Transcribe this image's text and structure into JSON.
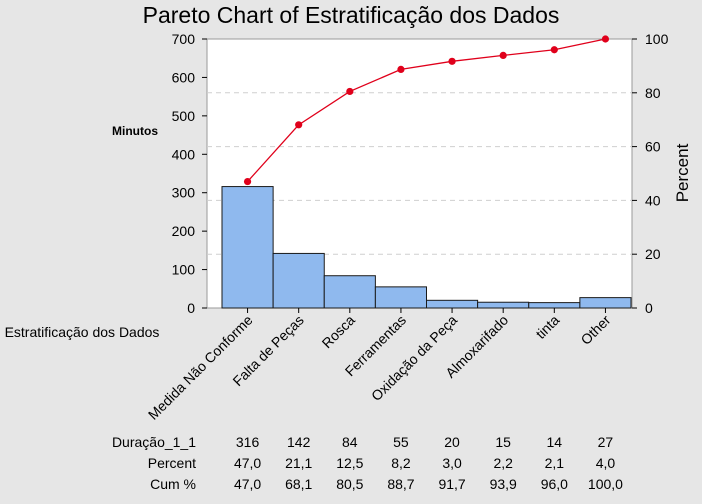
{
  "chart_data": {
    "type": "bar",
    "title": "Pareto Chart of Estratificação dos Dados",
    "ylabel": "Minutos",
    "y2label": "Percent",
    "xlabel": "Estratificação dos Dados",
    "ylim": [
      0,
      700
    ],
    "y2lim": [
      0,
      100
    ],
    "yticks": [
      0,
      100,
      200,
      300,
      400,
      500,
      600,
      700
    ],
    "y2ticks": [
      0,
      20,
      40,
      60,
      80,
      100
    ],
    "grid": true,
    "categories": [
      "Medida Não Conforme",
      "Falta de Peças",
      "Rosca",
      "Ferramentas",
      "Oxidação da Peça",
      "Almoxarifado",
      "tinta",
      "Other"
    ],
    "series": [
      {
        "name": "Duração_1_1",
        "type": "bar",
        "values": [
          316,
          142,
          84,
          55,
          20,
          15,
          14,
          27
        ]
      },
      {
        "name": "Cum %",
        "type": "line",
        "axis": "right",
        "values": [
          47.0,
          68.1,
          80.5,
          88.7,
          91.7,
          93.9,
          96.0,
          100.0
        ]
      }
    ],
    "table": {
      "rows": [
        {
          "label": "Duração_1_1",
          "values": [
            "316",
            "142",
            "84",
            "55",
            "20",
            "15",
            "14",
            "27"
          ]
        },
        {
          "label": "Percent",
          "values": [
            "47,0",
            "21,1",
            "12,5",
            "8,2",
            "3,0",
            "2,2",
            "2,1",
            "4,0"
          ]
        },
        {
          "label": "Cum %",
          "values": [
            "47,0",
            "68,1",
            "80,5",
            "88,7",
            "91,7",
            "93,9",
            "96,0",
            "100,0"
          ]
        }
      ]
    },
    "colors": {
      "bar": "#8fb9ee",
      "bar_stroke": "#1a1a1a",
      "line": "#e0001b",
      "grid": "#cfcfcf",
      "plot_bg": "#ffffff",
      "page_bg": "#e6e6e6"
    }
  }
}
